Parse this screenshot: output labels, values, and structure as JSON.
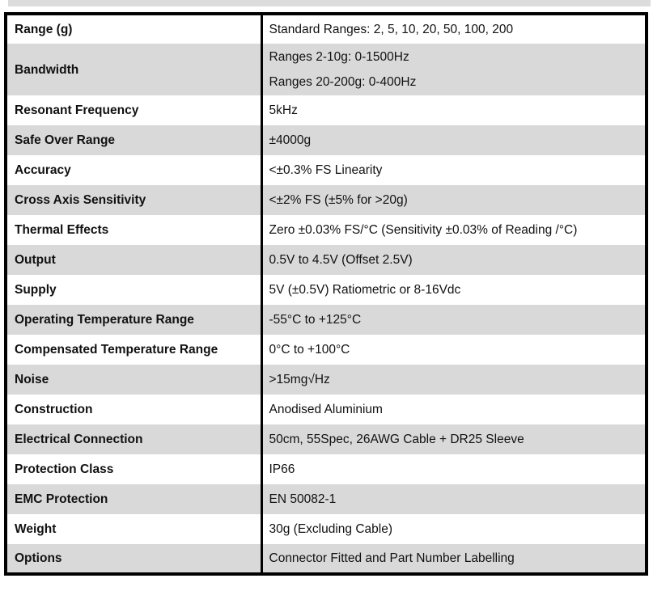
{
  "colors": {
    "row_shading": "#d9d9d9",
    "border": "#000000",
    "top_bar": "#dcdcdc",
    "text": "#111111",
    "background": "#ffffff"
  },
  "table": {
    "rows": [
      {
        "label": "Range (g)",
        "value": "Standard Ranges: 2, 5, 10, 20, 50, 100, 200"
      },
      {
        "label": "Bandwidth",
        "value": "Ranges 2-10g: 0-1500Hz\nRanges 20-200g: 0-400Hz"
      },
      {
        "label": "Resonant Frequency",
        "value": "5kHz"
      },
      {
        "label": "Safe Over Range",
        "value": "±4000g"
      },
      {
        "label": "Accuracy",
        "value": "<±0.3% FS Linearity"
      },
      {
        "label": "Cross Axis Sensitivity",
        "value": "<±2% FS (±5% for >20g)"
      },
      {
        "label": "Thermal Effects",
        "value": "Zero ±0.03% FS/°C (Sensitivity ±0.03% of Reading /°C)"
      },
      {
        "label": "Output",
        "value": "0.5V to 4.5V (Offset 2.5V)"
      },
      {
        "label": "Supply",
        "value": "5V (±0.5V) Ratiometric or 8-16Vdc"
      },
      {
        "label": "Operating Temperature Range",
        "value": "-55°C to +125°C"
      },
      {
        "label": "Compensated Temperature Range",
        "value": "0°C to +100°C"
      },
      {
        "label": "Noise",
        "value": ">15mg√Hz"
      },
      {
        "label": "Construction",
        "value": "Anodised Aluminium"
      },
      {
        "label": "Electrical Connection",
        "value": "50cm, 55Spec, 26AWG Cable + DR25 Sleeve"
      },
      {
        "label": "Protection Class",
        "value": "IP66"
      },
      {
        "label": "EMC Protection",
        "value": "EN 50082-1"
      },
      {
        "label": "Weight",
        "value": "30g (Excluding Cable)"
      },
      {
        "label": "Options",
        "value": "Connector Fitted and Part Number Labelling"
      }
    ]
  }
}
